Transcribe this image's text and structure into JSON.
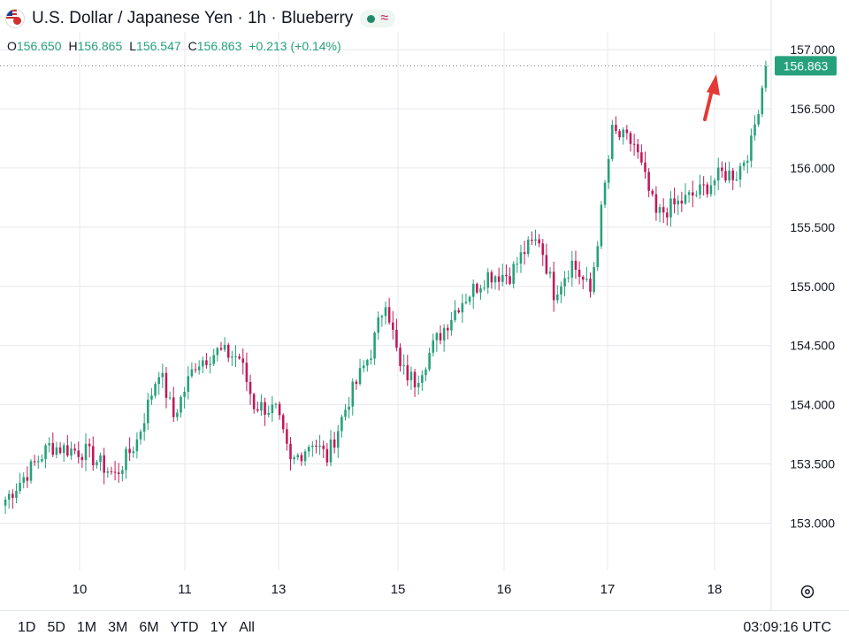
{
  "header": {
    "title": "U.S. Dollar / Japanese Yen · 1h · Blueberry",
    "ohlc": [
      {
        "k": "O",
        "v": "156.650"
      },
      {
        "k": "H",
        "v": "156.865"
      },
      {
        "k": "L",
        "v": "156.547"
      },
      {
        "k": "C",
        "v": "156.863"
      },
      {
        "k": "",
        "v": "+0.213 (+0.14%)"
      }
    ]
  },
  "colors": {
    "up": "#26a17b",
    "down": "#c2185b",
    "grid": "#e6e8ee",
    "price_label_bg": "#26a17b",
    "arrow": "#e53935"
  },
  "icons": {
    "flag": "usd-jpy-flag-icon",
    "status": "live-dot-icon",
    "indicator": "wave-icon",
    "settings": "gear-icon",
    "annotation": "red-arrow-icon"
  },
  "bottom_bar": {
    "ranges": [
      "1D",
      "5D",
      "1M",
      "3M",
      "6M",
      "YTD",
      "1Y",
      "All"
    ],
    "clock": "03:09:16 UTC"
  },
  "chart_data": {
    "type": "candlestick",
    "y_ticks": [
      "157.000",
      "156.500",
      "156.000",
      "155.500",
      "155.000",
      "154.500",
      "154.000",
      "153.500",
      "153.000"
    ],
    "ylim": [
      152.6,
      157.15
    ],
    "x_ticks": [
      "10",
      "11",
      "13",
      "15",
      "16",
      "17",
      "18"
    ],
    "last_price": "156.863",
    "grid": true,
    "waypoints": [
      [
        0,
        153.2
      ],
      [
        12,
        153.65
      ],
      [
        22,
        153.6
      ],
      [
        30,
        153.4
      ],
      [
        36,
        153.7
      ],
      [
        42,
        154.3
      ],
      [
        46,
        153.9
      ],
      [
        52,
        154.35
      ],
      [
        58,
        154.45
      ],
      [
        64,
        154.4
      ],
      [
        68,
        154.0
      ],
      [
        74,
        153.95
      ],
      [
        78,
        153.5
      ],
      [
        84,
        153.7
      ],
      [
        88,
        153.55
      ],
      [
        94,
        154.05
      ],
      [
        100,
        154.45
      ],
      [
        104,
        154.9
      ],
      [
        108,
        154.3
      ],
      [
        112,
        154.2
      ],
      [
        118,
        154.55
      ],
      [
        124,
        154.85
      ],
      [
        132,
        155.1
      ],
      [
        138,
        155.1
      ],
      [
        142,
        155.3
      ],
      [
        146,
        155.4
      ],
      [
        150,
        154.95
      ],
      [
        155,
        155.2
      ],
      [
        160,
        154.95
      ],
      [
        166,
        156.3
      ],
      [
        172,
        156.2
      ],
      [
        178,
        155.6
      ],
      [
        184,
        155.7
      ],
      [
        190,
        155.8
      ],
      [
        196,
        155.95
      ],
      [
        200,
        155.95
      ],
      [
        204,
        156.2
      ],
      [
        208,
        156.86
      ]
    ]
  }
}
